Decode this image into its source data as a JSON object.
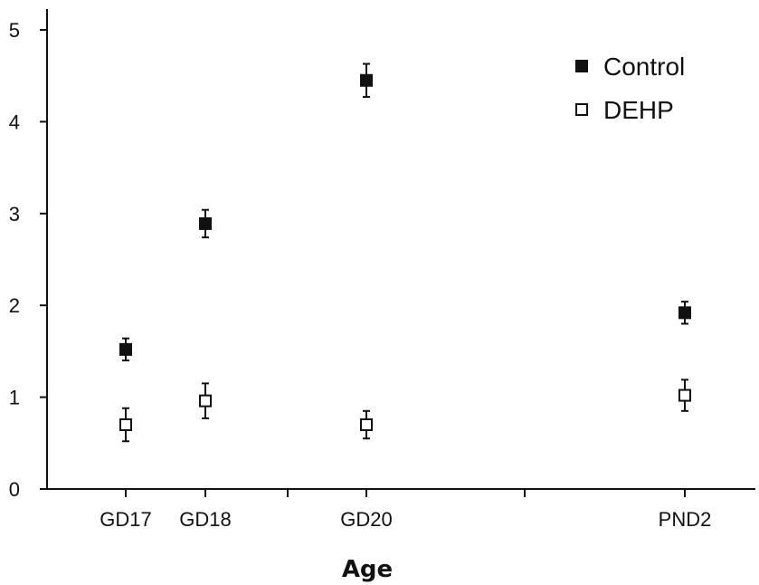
{
  "chart_data": {
    "type": "scatter",
    "title": "",
    "xlabel": "Age",
    "ylabel": "",
    "categories": [
      "GD17",
      "GD18",
      "GD20",
      "PND2"
    ],
    "ylim": [
      0,
      5
    ],
    "yticks": [
      "0",
      "1",
      "2",
      "3",
      "4",
      "5"
    ],
    "grid": false,
    "legend_position": "top-right",
    "series": [
      {
        "name": "Control",
        "marker": "filled-square",
        "color": "#111111",
        "values": [
          1.52,
          2.89,
          4.45,
          1.92
        ],
        "errors": [
          0.12,
          0.15,
          0.18,
          0.12
        ]
      },
      {
        "name": "DEHP",
        "marker": "open-square",
        "color": "#111111",
        "values": [
          0.7,
          0.96,
          0.7,
          1.02
        ],
        "errors": [
          0.18,
          0.19,
          0.15,
          0.17
        ]
      }
    ]
  }
}
